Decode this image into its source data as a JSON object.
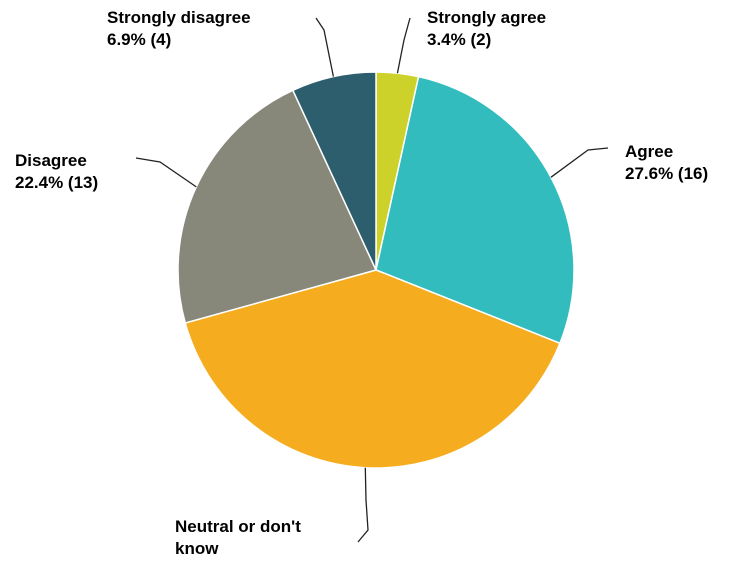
{
  "chart_data": {
    "type": "pie",
    "title": "",
    "slices": [
      {
        "label": "Strongly agree",
        "value_text": "3.4% (2)",
        "percent": 3.4,
        "count": 2,
        "color": "#ccd22a"
      },
      {
        "label": "Agree",
        "value_text": "27.6% (16)",
        "percent": 27.6,
        "count": 16,
        "color": "#32bcbe"
      },
      {
        "label": "Neutral or don't know",
        "value_text": "",
        "percent": 39.7,
        "count": 23,
        "color": "#f5ad1f"
      },
      {
        "label": "Disagree",
        "value_text": "22.4% (13)",
        "percent": 22.4,
        "count": 13,
        "color": "#87877a"
      },
      {
        "label": "Strongly disagree",
        "value_text": "6.9% (4)",
        "percent": 6.9,
        "count": 4,
        "color": "#2c5e6e"
      }
    ]
  }
}
